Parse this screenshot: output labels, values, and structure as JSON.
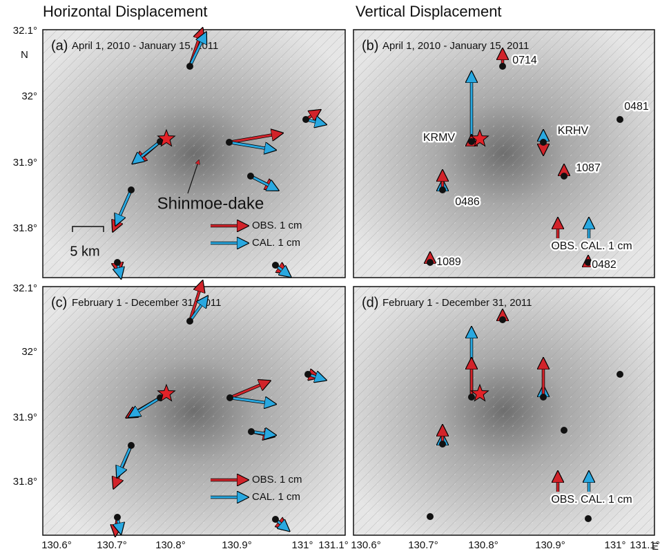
{
  "column_titles": [
    "Horizontal Displacement",
    "Vertical Displacement"
  ],
  "axis": {
    "lat_ticks": [
      "32.1°",
      "32°",
      "31.9°",
      "31.8°"
    ],
    "lon_ticks": [
      "130.6°",
      "130.7°",
      "130.8°",
      "130.9°",
      "131°",
      "131.1°"
    ],
    "lat_label": "N",
    "lon_label": "E"
  },
  "panels": [
    {
      "label": "(a)",
      "period": "April 1, 2010 - January 15, 2011",
      "volcano": "Shinmoe-dake",
      "scale_bar": "5 km",
      "legend": [
        "OBS. 1 cm",
        "CAL. 1 cm"
      ]
    },
    {
      "label": "(b)",
      "period": "April 1, 2010 - January 15, 2011",
      "stations": [
        "0714",
        "KRMV",
        "KRHV",
        "0481",
        "1087",
        "0486",
        "1089",
        "0482"
      ],
      "legend": [
        "OBS. CAL. 1 cm"
      ]
    },
    {
      "label": "(c)",
      "period": "February 1 - December 31, 2011",
      "legend": [
        "OBS. 1 cm",
        "CAL. 1 cm"
      ]
    },
    {
      "label": "(d)",
      "period": "February 1 - December 31, 2011",
      "legend": [
        "OBS. CAL. 1 cm"
      ]
    }
  ]
}
